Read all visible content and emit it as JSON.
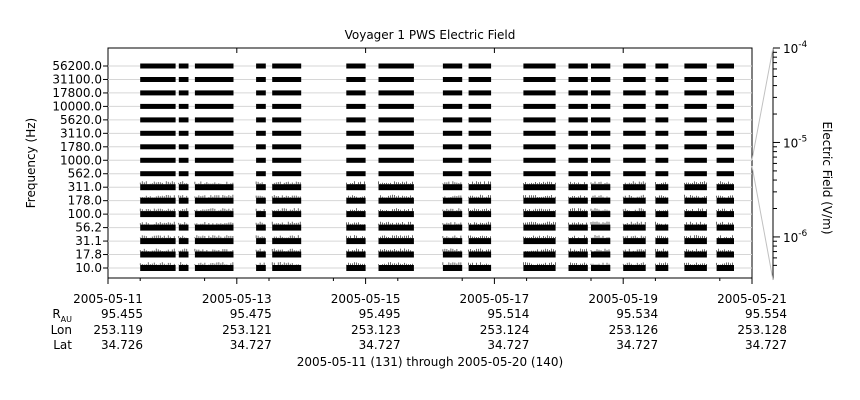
{
  "chart_data": {
    "type": "heatmap",
    "title": "Voyager 1 PWS Electric Field",
    "ylabel": "Frequency (Hz)",
    "colorbar_label": "Electric Field (V/m)",
    "colorbar_scale": "log",
    "colorbar_ticks": [
      {
        "mantissa": "10",
        "exponent": "-4",
        "value": 0.0001
      },
      {
        "mantissa": "10",
        "exponent": "-5",
        "value": 1e-05
      },
      {
        "mantissa": "10",
        "exponent": "-6",
        "value": 1e-06
      }
    ],
    "y_channels": [
      "56200.0",
      "31100.0",
      "17800.0",
      "10000.0",
      "5620.0",
      "3110.0",
      "1780.0",
      "1000.0",
      "562.0",
      "311.0",
      "178.0",
      "100.0",
      "56.2",
      "31.1",
      "17.8",
      "10.0"
    ],
    "x_range": [
      "2005-05-11",
      "2005-05-21"
    ],
    "x_ticks": [
      "2005-05-11",
      "2005-05-13",
      "2005-05-15",
      "2005-05-17",
      "2005-05-19",
      "2005-05-21"
    ],
    "ephemeris": {
      "labels": {
        "r": "R",
        "r_sub": "AU",
        "lon": "Lon",
        "lat": "Lat"
      },
      "r": [
        "95.455",
        "95.475",
        "95.495",
        "95.514",
        "95.534",
        "95.554"
      ],
      "lon": [
        "253.119",
        "253.121",
        "253.123",
        "253.124",
        "253.126",
        "253.128"
      ],
      "lat": [
        "34.726",
        "34.727",
        "34.727",
        "34.727",
        "34.727",
        "34.727"
      ]
    },
    "data_intervals_days": [
      [
        0.5,
        1.05
      ],
      [
        1.1,
        1.25
      ],
      [
        1.35,
        1.95
      ],
      [
        2.3,
        2.45
      ],
      [
        2.55,
        3.0
      ],
      [
        3.7,
        4.0
      ],
      [
        4.2,
        4.75
      ],
      [
        5.2,
        5.5
      ],
      [
        5.6,
        5.95
      ],
      [
        6.45,
        6.95
      ],
      [
        7.15,
        7.45
      ],
      [
        7.5,
        7.8
      ],
      [
        8.0,
        8.35
      ],
      [
        8.5,
        8.7
      ],
      [
        8.95,
        9.3
      ],
      [
        9.45,
        9.72
      ]
    ],
    "grid": true
  },
  "footer": {
    "caption": "2005-05-11 (131) through 2005-05-20 (140)"
  }
}
